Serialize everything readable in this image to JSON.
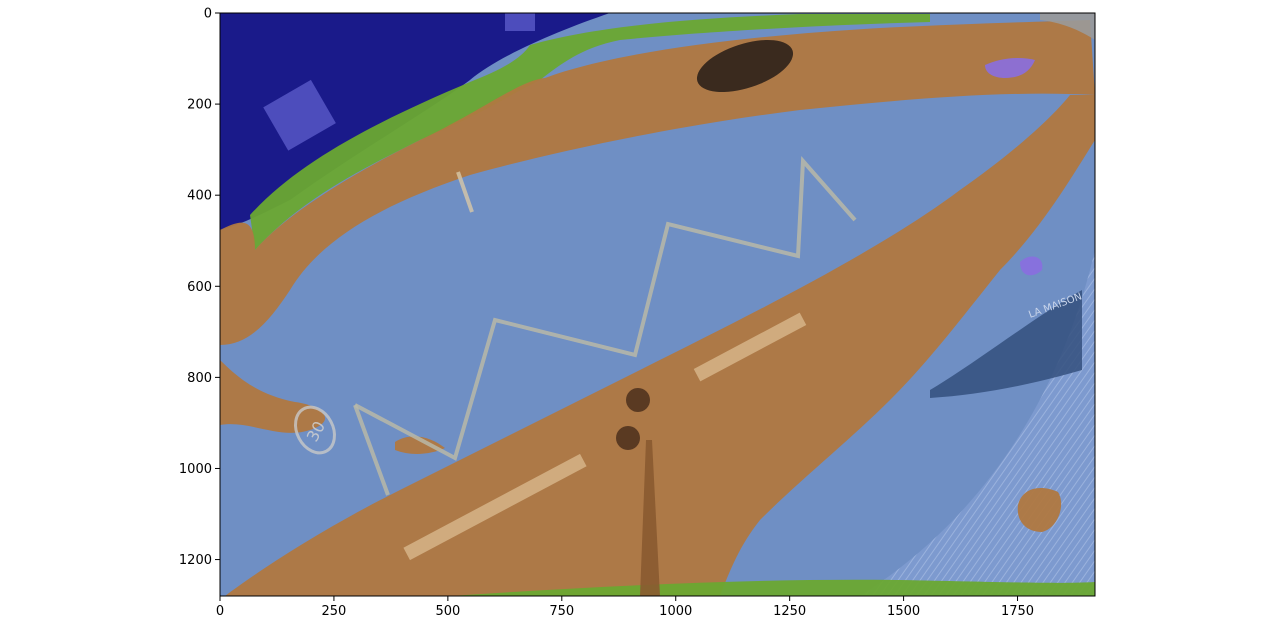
{
  "figure": {
    "x_axis": {
      "min": 0,
      "max": 1920,
      "ticks": [
        0,
        250,
        500,
        750,
        1000,
        1250,
        1500,
        1750
      ]
    },
    "y_axis": {
      "min": 0,
      "max": 1280,
      "inverted": true,
      "ticks": [
        0,
        200,
        400,
        600,
        800,
        1000,
        1200
      ]
    },
    "overlay_colors": {
      "road": "#6f8fc4",
      "sidewalk": "#b07840",
      "building": "#1a1a8a",
      "vegetation": "#6aa832",
      "sign": "#8a6ee0",
      "background": "#9a9a9a"
    },
    "painted_text": "30",
    "storefront_text": "LA MAISON"
  }
}
